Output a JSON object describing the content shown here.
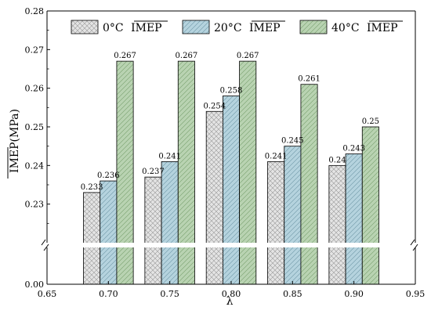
{
  "chart_data": {
    "type": "bar",
    "title": "",
    "xlabel": "λ",
    "ylabel_over": "IMEP",
    "ylabel_unit": "(MPa)",
    "categories": [
      "0.70",
      "0.75",
      "0.80",
      "0.85",
      "0.90"
    ],
    "x_values": [
      0.7,
      0.75,
      0.8,
      0.85,
      0.9
    ],
    "series": [
      {
        "name": "0°C",
        "name_over": "IMEP",
        "values": [
          0.233,
          0.237,
          0.254,
          0.241,
          0.24
        ],
        "color": "#e4e4e4",
        "hatch": "crosshatch"
      },
      {
        "name": "20°C",
        "name_over": "IMEP",
        "values": [
          0.236,
          0.241,
          0.258,
          0.245,
          0.243
        ],
        "color": "#b5d3de",
        "hatch": "diagonal-right"
      },
      {
        "name": "40°C",
        "name_over": "IMEP",
        "values": [
          0.267,
          0.267,
          0.267,
          0.261,
          0.25
        ],
        "color": "#b9d3b2",
        "hatch": "diagonal-right"
      }
    ],
    "data_labels": [
      [
        "0.233",
        "0.237",
        "0.254",
        "0.241",
        "0.24"
      ],
      [
        "0.236",
        "0.241",
        "0.258",
        "0.245",
        "0.243"
      ],
      [
        "0.267",
        "0.267",
        "0.267",
        "0.261",
        "0.25"
      ]
    ],
    "x_ticks": [
      "0.65",
      "0.70",
      "0.75",
      "0.80",
      "0.85",
      "0.90",
      "0.95"
    ],
    "x_tick_values": [
      0.65,
      0.7,
      0.75,
      0.8,
      0.85,
      0.9,
      0.95
    ],
    "y_ticks_upper": [
      "0.23",
      "0.24",
      "0.25",
      "0.26",
      "0.27",
      "0.28"
    ],
    "y_tick_values_upper": [
      0.23,
      0.24,
      0.25,
      0.26,
      0.27,
      0.28
    ],
    "y_ticks_lower": [
      "0.00"
    ],
    "xlim": [
      0.65,
      0.95
    ],
    "ylim_upper": [
      0.22,
      0.28
    ],
    "ylim_lower": [
      0.0,
      0.22
    ],
    "axis_break": true,
    "legend_position": "top",
    "grid": false
  }
}
